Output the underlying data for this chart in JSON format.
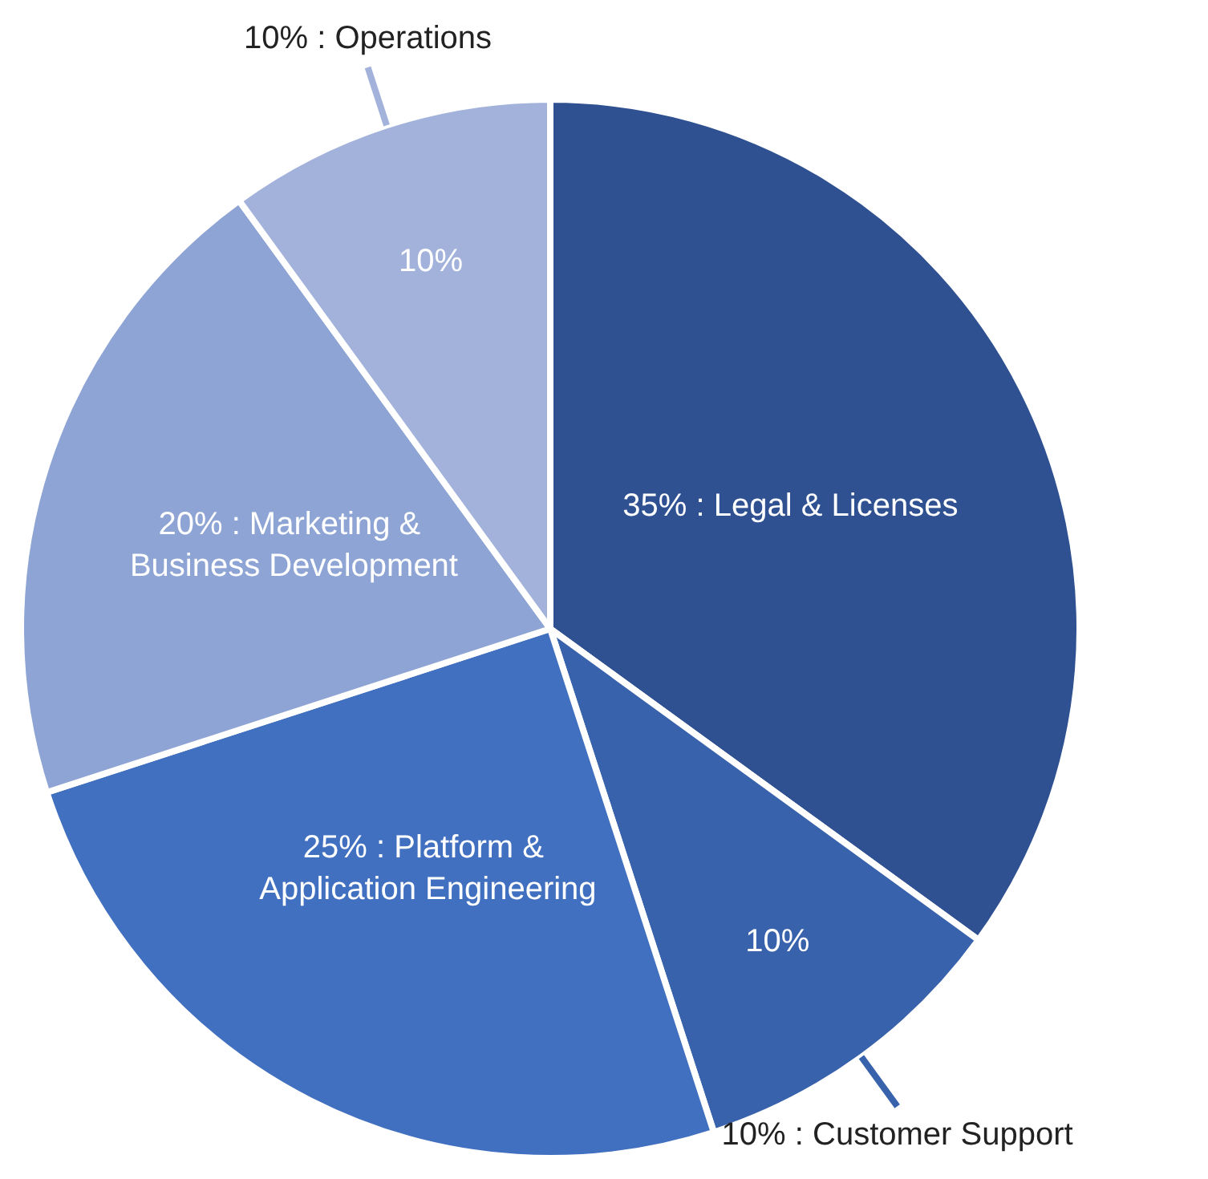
{
  "chart_data": {
    "type": "pie",
    "categories": [
      "Legal & Licenses",
      "Customer Support",
      "Platform & Application Engineering",
      "Marketing & Business Development",
      "Operations"
    ],
    "values": [
      35,
      10,
      25,
      20,
      10
    ],
    "colors": [
      "#2f5091",
      "#3862ac",
      "#4270c0",
      "#8ea4d4",
      "#a2b2db"
    ],
    "value_labels": [
      "35%",
      "10%",
      "25%",
      "20%",
      "10%"
    ]
  }
}
